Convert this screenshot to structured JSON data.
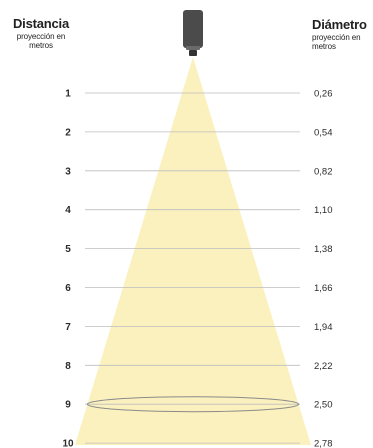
{
  "left_header": {
    "title": "Distancia",
    "subtitle_line1": "proyección en",
    "subtitle_line2": "metros"
  },
  "right_header": {
    "title": "Diámetro",
    "subtitle_line1": "proyección en",
    "subtitle_line2": "metros"
  },
  "colors": {
    "beam": "#fbf1bf",
    "projector_body": "#4b4b4b",
    "guide_line": "#bdbdbd",
    "text": "#2b2b2b"
  },
  "rows": [
    {
      "distance": "1",
      "diameter": "0,26"
    },
    {
      "distance": "2",
      "diameter": "0,54"
    },
    {
      "distance": "3",
      "diameter": "0,82"
    },
    {
      "distance": "4",
      "diameter": "1,10"
    },
    {
      "distance": "5",
      "diameter": "1,38"
    },
    {
      "distance": "6",
      "diameter": "1,66"
    },
    {
      "distance": "7",
      "diameter": "1,94"
    },
    {
      "distance": "8",
      "diameter": "2,22"
    },
    {
      "distance": "9",
      "diameter": "2,50"
    },
    {
      "distance": "10",
      "diameter": "2,78"
    }
  ],
  "highlighted_distance": "9"
}
